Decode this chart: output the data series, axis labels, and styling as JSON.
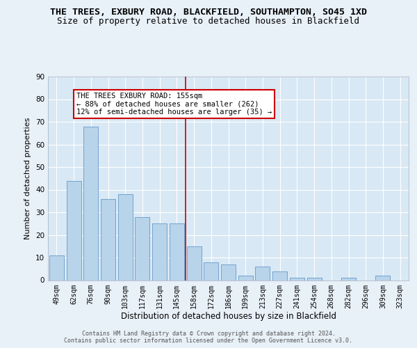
{
  "title": "THE TREES, EXBURY ROAD, BLACKFIELD, SOUTHAMPTON, SO45 1XD",
  "subtitle": "Size of property relative to detached houses in Blackfield",
  "xlabel": "Distribution of detached houses by size in Blackfield",
  "ylabel": "Number of detached properties",
  "categories": [
    "49sqm",
    "62sqm",
    "76sqm",
    "90sqm",
    "103sqm",
    "117sqm",
    "131sqm",
    "145sqm",
    "158sqm",
    "172sqm",
    "186sqm",
    "199sqm",
    "213sqm",
    "227sqm",
    "241sqm",
    "254sqm",
    "268sqm",
    "282sqm",
    "296sqm",
    "309sqm",
    "323sqm"
  ],
  "values": [
    11,
    44,
    68,
    36,
    38,
    28,
    25,
    25,
    15,
    8,
    7,
    2,
    6,
    4,
    1,
    1,
    0,
    1,
    0,
    2,
    0
  ],
  "bar_color": "#b8d4ea",
  "bar_edge_color": "#6699cc",
  "vline_color": "#cc0000",
  "annotation_box_text": "THE TREES EXBURY ROAD: 155sqm\n← 88% of detached houses are smaller (262)\n12% of semi-detached houses are larger (35) →",
  "annotation_box_color": "#cc0000",
  "annotation_box_fill": "#ffffff",
  "ylim": [
    0,
    90
  ],
  "yticks": [
    0,
    10,
    20,
    30,
    40,
    50,
    60,
    70,
    80,
    90
  ],
  "background_color": "#e8f0f8",
  "plot_bg_color": "#d8e8f4",
  "grid_color": "#ffffff",
  "footer_text": "Contains HM Land Registry data © Crown copyright and database right 2024.\nContains public sector information licensed under the Open Government Licence v3.0.",
  "title_fontsize": 9.5,
  "subtitle_fontsize": 9,
  "tick_fontsize": 7,
  "ylabel_fontsize": 8,
  "xlabel_fontsize": 8.5,
  "annotation_fontsize": 7.5,
  "footer_fontsize": 6
}
